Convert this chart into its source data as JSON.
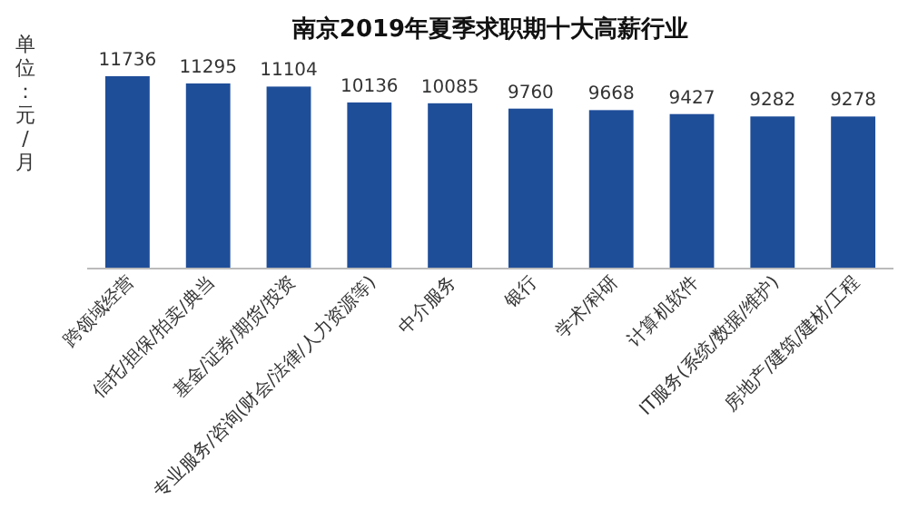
{
  "chart_data": {
    "type": "bar",
    "title": "南京2019年夏季求职期十大高薪行业",
    "ylabel": "单位：元/月",
    "categories": [
      "跨领域经营",
      "信托/担保/拍卖/典当",
      "基金/证券/期货/投资",
      "专业服务/咨询(财会/法律/人力资源等)",
      "中介服务",
      "银行",
      "学术/科研",
      "计算机软件",
      "IT服务(系统/数据/维护)",
      "房地产/建筑/建材/工程"
    ],
    "values": [
      11736,
      11295,
      11104,
      10136,
      10085,
      9760,
      9668,
      9427,
      9282,
      9278
    ],
    "color": "#1f4e99",
    "data_labels": true,
    "tick_labels": "x"
  }
}
